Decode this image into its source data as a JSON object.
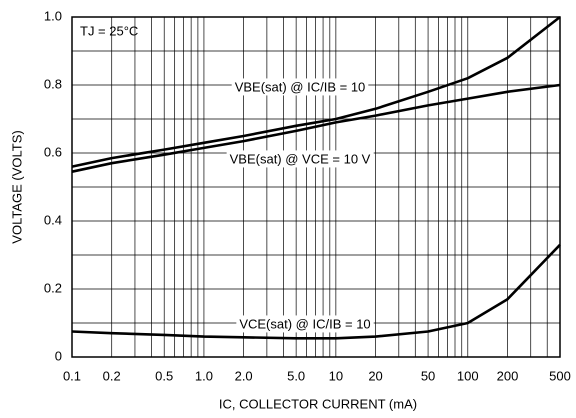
{
  "chart_data": {
    "type": "line",
    "annotation": "TJ = 25°C",
    "xlabel": "IC, COLLECTOR CURRENT (mA)",
    "ylabel": "VOLTAGE (VOLTS)",
    "xscale": "log",
    "grid": true,
    "x": [
      0.1,
      0.2,
      0.5,
      1,
      2,
      5,
      10,
      20,
      50,
      100,
      200,
      500
    ],
    "series": [
      {
        "name": "VBE(sat) @ IC/IB = 10",
        "color": "#000000",
        "values": [
          0.56,
          0.585,
          0.61,
          0.63,
          0.65,
          0.68,
          0.7,
          0.73,
          0.78,
          0.82,
          0.88,
          1.0
        ]
      },
      {
        "name": "VBE(sat) @ VCE = 10 V",
        "color": "#000000",
        "values": [
          0.545,
          0.57,
          0.595,
          0.615,
          0.635,
          0.665,
          0.69,
          0.71,
          0.74,
          0.76,
          0.78,
          0.8
        ]
      },
      {
        "name": "VCE(sat) @ IC/IB = 10",
        "color": "#000000",
        "values": [
          0.075,
          0.07,
          0.065,
          0.06,
          0.058,
          0.055,
          0.055,
          0.06,
          0.075,
          0.1,
          0.17,
          0.33
        ]
      }
    ],
    "xlim": [
      0.1,
      500
    ],
    "xticks": [
      0.1,
      0.2,
      0.5,
      {
        "value": 1,
        "label": "1.0"
      },
      {
        "value": 2,
        "label": "2.0"
      },
      {
        "value": 5,
        "label": "5.0"
      },
      10,
      20,
      50,
      100,
      200,
      500
    ],
    "xminor_ticks": [
      0.3,
      0.4,
      0.6,
      0.7,
      0.8,
      0.9,
      3,
      4,
      6,
      7,
      8,
      9,
      30,
      40,
      60,
      70,
      80,
      90,
      300,
      400
    ],
    "ylim": [
      0,
      1
    ],
    "yticks": [
      0,
      0.2,
      0.4,
      0.6,
      0.8,
      {
        "value": 1,
        "label": "1.0"
      }
    ],
    "yminor_ticks": [
      0.1,
      0.3,
      0.5,
      0.7,
      0.9
    ]
  }
}
